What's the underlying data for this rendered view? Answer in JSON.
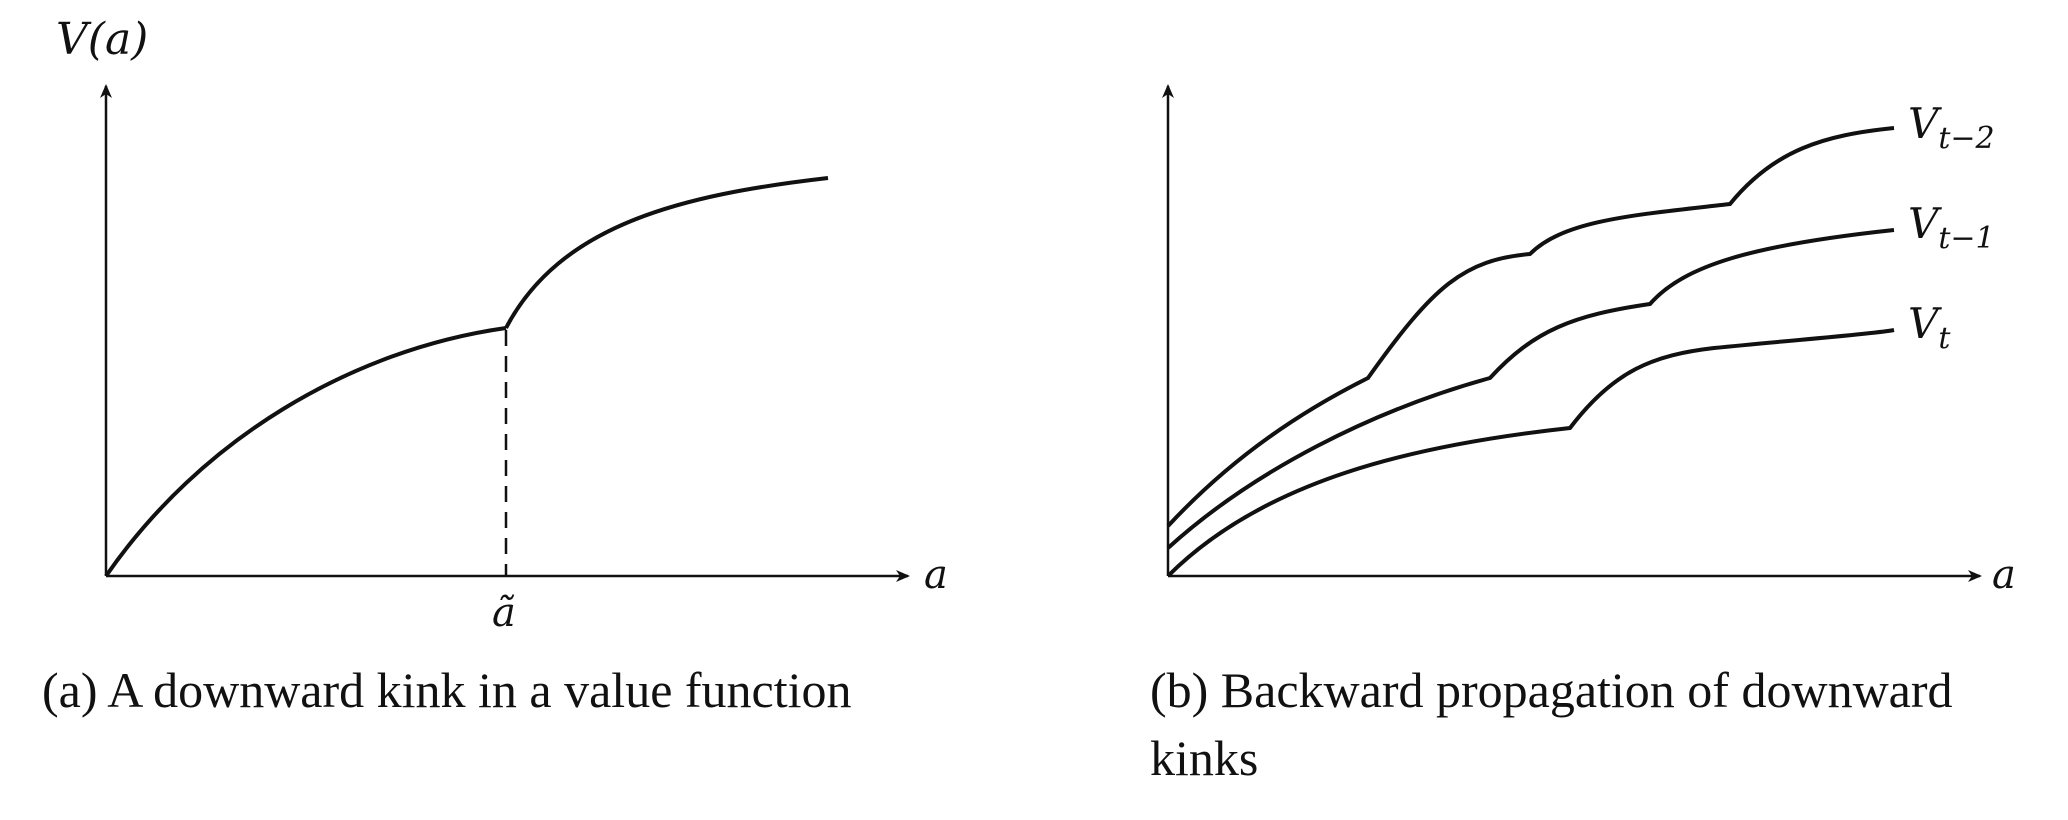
{
  "panel_a": {
    "y_axis_label": "V(a)",
    "x_axis_label": "a",
    "kink_tick_label": "ã",
    "caption": "(a) A downward kink in a value function"
  },
  "panel_b": {
    "x_axis_label": "a",
    "curve_labels": {
      "v_t_minus_2": {
        "base": "V",
        "sub": "t−2"
      },
      "v_t_minus_1": {
        "base": "V",
        "sub": "t−1"
      },
      "v_t": {
        "base": "V",
        "sub": "t"
      }
    },
    "caption": "(b) Backward propagation of downward kinks"
  },
  "colors": {
    "ink": "#111111",
    "background": "#ffffff"
  }
}
